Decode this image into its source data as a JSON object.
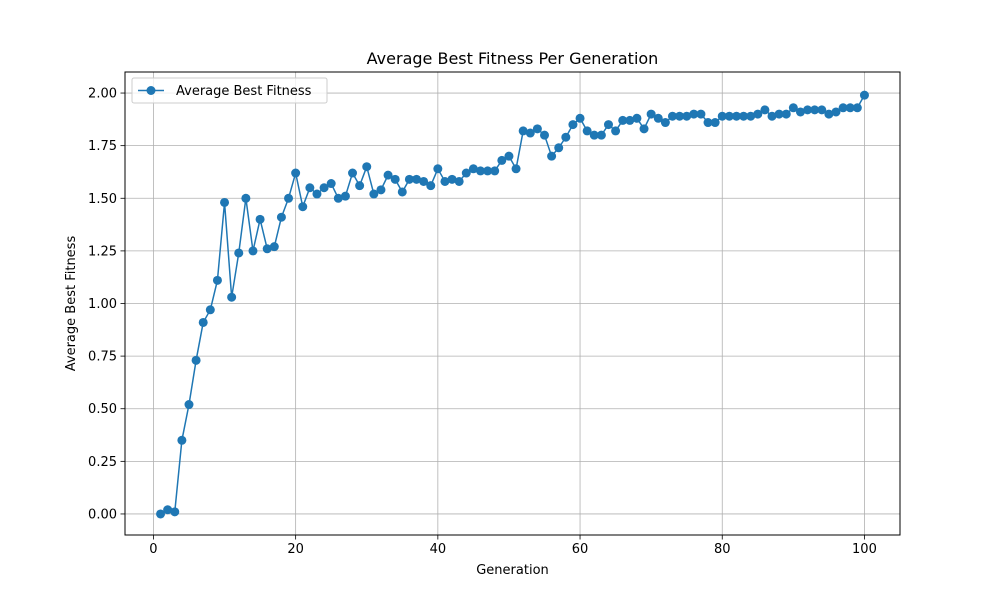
{
  "chart_data": {
    "type": "line",
    "title": "Average Best Fitness Per Generation",
    "xlabel": "Generation",
    "ylabel": "Average Best Fitness",
    "xlim": [
      -4,
      105
    ],
    "ylim": [
      -0.1,
      2.1
    ],
    "xticks": [
      0,
      20,
      40,
      60,
      80,
      100
    ],
    "yticks": [
      0.0,
      0.25,
      0.5,
      0.75,
      1.0,
      1.25,
      1.5,
      1.75,
      2.0
    ],
    "xtick_labels": [
      "0",
      "20",
      "40",
      "60",
      "80",
      "100"
    ],
    "ytick_labels": [
      "0.00",
      "0.25",
      "0.50",
      "0.75",
      "1.00",
      "1.25",
      "1.50",
      "1.75",
      "2.00"
    ],
    "grid": true,
    "legend_position": "top-left",
    "series": [
      {
        "name": "Average Best Fitness",
        "color": "#1f77b4",
        "marker": "circle",
        "x": [
          1,
          2,
          3,
          4,
          5,
          6,
          7,
          8,
          9,
          10,
          11,
          12,
          13,
          14,
          15,
          16,
          17,
          18,
          19,
          20,
          21,
          22,
          23,
          24,
          25,
          26,
          27,
          28,
          29,
          30,
          31,
          32,
          33,
          34,
          35,
          36,
          37,
          38,
          39,
          40,
          41,
          42,
          43,
          44,
          45,
          46,
          47,
          48,
          49,
          50,
          51,
          52,
          53,
          54,
          55,
          56,
          57,
          58,
          59,
          60,
          61,
          62,
          63,
          64,
          65,
          66,
          67,
          68,
          69,
          70,
          71,
          72,
          73,
          74,
          75,
          76,
          77,
          78,
          79,
          80,
          81,
          82,
          83,
          84,
          85,
          86,
          87,
          88,
          89,
          90,
          91,
          92,
          93,
          94,
          95,
          96,
          97,
          98,
          99,
          100
        ],
        "y": [
          0.0,
          0.02,
          0.01,
          0.35,
          0.52,
          0.73,
          0.91,
          0.97,
          1.11,
          1.48,
          1.03,
          1.24,
          1.5,
          1.25,
          1.4,
          1.26,
          1.27,
          1.41,
          1.5,
          1.62,
          1.46,
          1.55,
          1.52,
          1.55,
          1.57,
          1.5,
          1.51,
          1.62,
          1.56,
          1.65,
          1.52,
          1.54,
          1.61,
          1.59,
          1.53,
          1.59,
          1.59,
          1.58,
          1.56,
          1.64,
          1.58,
          1.59,
          1.58,
          1.62,
          1.64,
          1.63,
          1.63,
          1.63,
          1.68,
          1.7,
          1.64,
          1.82,
          1.81,
          1.83,
          1.8,
          1.7,
          1.74,
          1.79,
          1.85,
          1.88,
          1.82,
          1.8,
          1.8,
          1.85,
          1.82,
          1.87,
          1.87,
          1.88,
          1.83,
          1.9,
          1.88,
          1.86,
          1.89,
          1.89,
          1.89,
          1.9,
          1.9,
          1.86,
          1.86,
          1.89,
          1.89,
          1.89,
          1.89,
          1.89,
          1.9,
          1.92,
          1.89,
          1.9,
          1.9,
          1.93,
          1.91,
          1.92,
          1.92,
          1.92,
          1.9,
          1.91,
          1.93,
          1.93,
          1.93,
          1.99
        ]
      }
    ]
  }
}
